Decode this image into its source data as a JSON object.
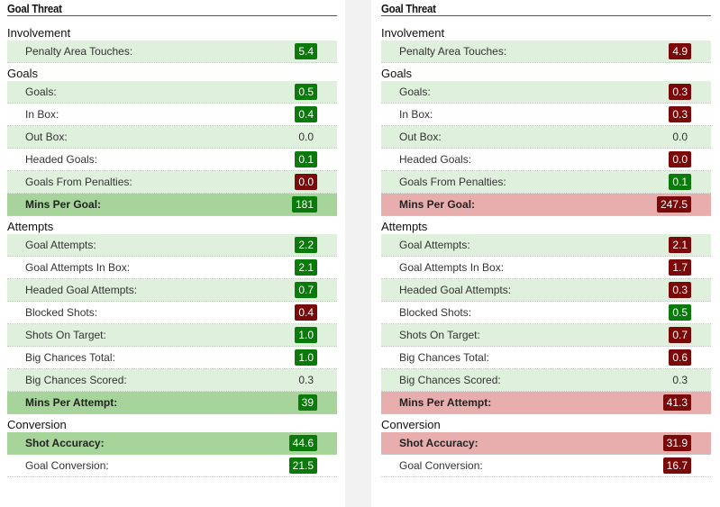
{
  "colors": {
    "good": "#0a7a0a",
    "bad": "#7a0a0a",
    "alt_row": "#dff0dc",
    "highlight_good": "#a6d49b",
    "highlight_bad": "#e8aeae"
  },
  "panels": [
    {
      "title": "Goal Threat",
      "highlight": "good",
      "sections": [
        {
          "name": "Involvement",
          "rows": [
            {
              "label": "Penalty Area Touches:",
              "value": "5.4",
              "status": "good"
            }
          ]
        },
        {
          "name": "Goals",
          "rows": [
            {
              "label": "Goals:",
              "value": "0.5",
              "status": "good"
            },
            {
              "label": "In Box:",
              "value": "0.4",
              "status": "good"
            },
            {
              "label": "Out Box:",
              "value": "0.0",
              "status": "plain"
            },
            {
              "label": "Headed Goals:",
              "value": "0.1",
              "status": "good"
            },
            {
              "label": "Goals From Penalties:",
              "value": "0.0",
              "status": "bad"
            },
            {
              "label": "Mins Per Goal:",
              "value": "181",
              "status": "good",
              "highlight": true
            }
          ]
        },
        {
          "name": "Attempts",
          "rows": [
            {
              "label": "Goal Attempts:",
              "value": "2.2",
              "status": "good"
            },
            {
              "label": "Goal Attempts In Box:",
              "value": "2.1",
              "status": "good"
            },
            {
              "label": "Headed Goal Attempts:",
              "value": "0.7",
              "status": "good"
            },
            {
              "label": "Blocked Shots:",
              "value": "0.4",
              "status": "bad"
            },
            {
              "label": "Shots On Target:",
              "value": "1.0",
              "status": "good"
            },
            {
              "label": "Big Chances Total:",
              "value": "1.0",
              "status": "good"
            },
            {
              "label": "Big Chances Scored:",
              "value": "0.3",
              "status": "plain"
            },
            {
              "label": "Mins Per Attempt:",
              "value": "39",
              "status": "good",
              "highlight": true
            }
          ]
        },
        {
          "name": "Conversion",
          "rows": [
            {
              "label": "Shot Accuracy:",
              "value": "44.6",
              "status": "good",
              "highlight": true
            },
            {
              "label": "Goal Conversion:",
              "value": "21.5",
              "status": "good"
            }
          ]
        }
      ]
    },
    {
      "title": "Goal Threat",
      "highlight": "bad",
      "sections": [
        {
          "name": "Involvement",
          "rows": [
            {
              "label": "Penalty Area Touches:",
              "value": "4.9",
              "status": "bad"
            }
          ]
        },
        {
          "name": "Goals",
          "rows": [
            {
              "label": "Goals:",
              "value": "0.3",
              "status": "bad"
            },
            {
              "label": "In Box:",
              "value": "0.3",
              "status": "bad"
            },
            {
              "label": "Out Box:",
              "value": "0.0",
              "status": "plain"
            },
            {
              "label": "Headed Goals:",
              "value": "0.0",
              "status": "bad"
            },
            {
              "label": "Goals From Penalties:",
              "value": "0.1",
              "status": "good"
            },
            {
              "label": "Mins Per Goal:",
              "value": "247.5",
              "status": "bad",
              "highlight": true
            }
          ]
        },
        {
          "name": "Attempts",
          "rows": [
            {
              "label": "Goal Attempts:",
              "value": "2.1",
              "status": "bad"
            },
            {
              "label": "Goal Attempts In Box:",
              "value": "1.7",
              "status": "bad"
            },
            {
              "label": "Headed Goal Attempts:",
              "value": "0.3",
              "status": "bad"
            },
            {
              "label": "Blocked Shots:",
              "value": "0.5",
              "status": "good"
            },
            {
              "label": "Shots On Target:",
              "value": "0.7",
              "status": "bad"
            },
            {
              "label": "Big Chances Total:",
              "value": "0.6",
              "status": "bad"
            },
            {
              "label": "Big Chances Scored:",
              "value": "0.3",
              "status": "plain"
            },
            {
              "label": "Mins Per Attempt:",
              "value": "41.3",
              "status": "bad",
              "highlight": true
            }
          ]
        },
        {
          "name": "Conversion",
          "rows": [
            {
              "label": "Shot Accuracy:",
              "value": "31.9",
              "status": "bad",
              "highlight": true
            },
            {
              "label": "Goal Conversion:",
              "value": "16.7",
              "status": "bad"
            }
          ]
        }
      ]
    }
  ]
}
